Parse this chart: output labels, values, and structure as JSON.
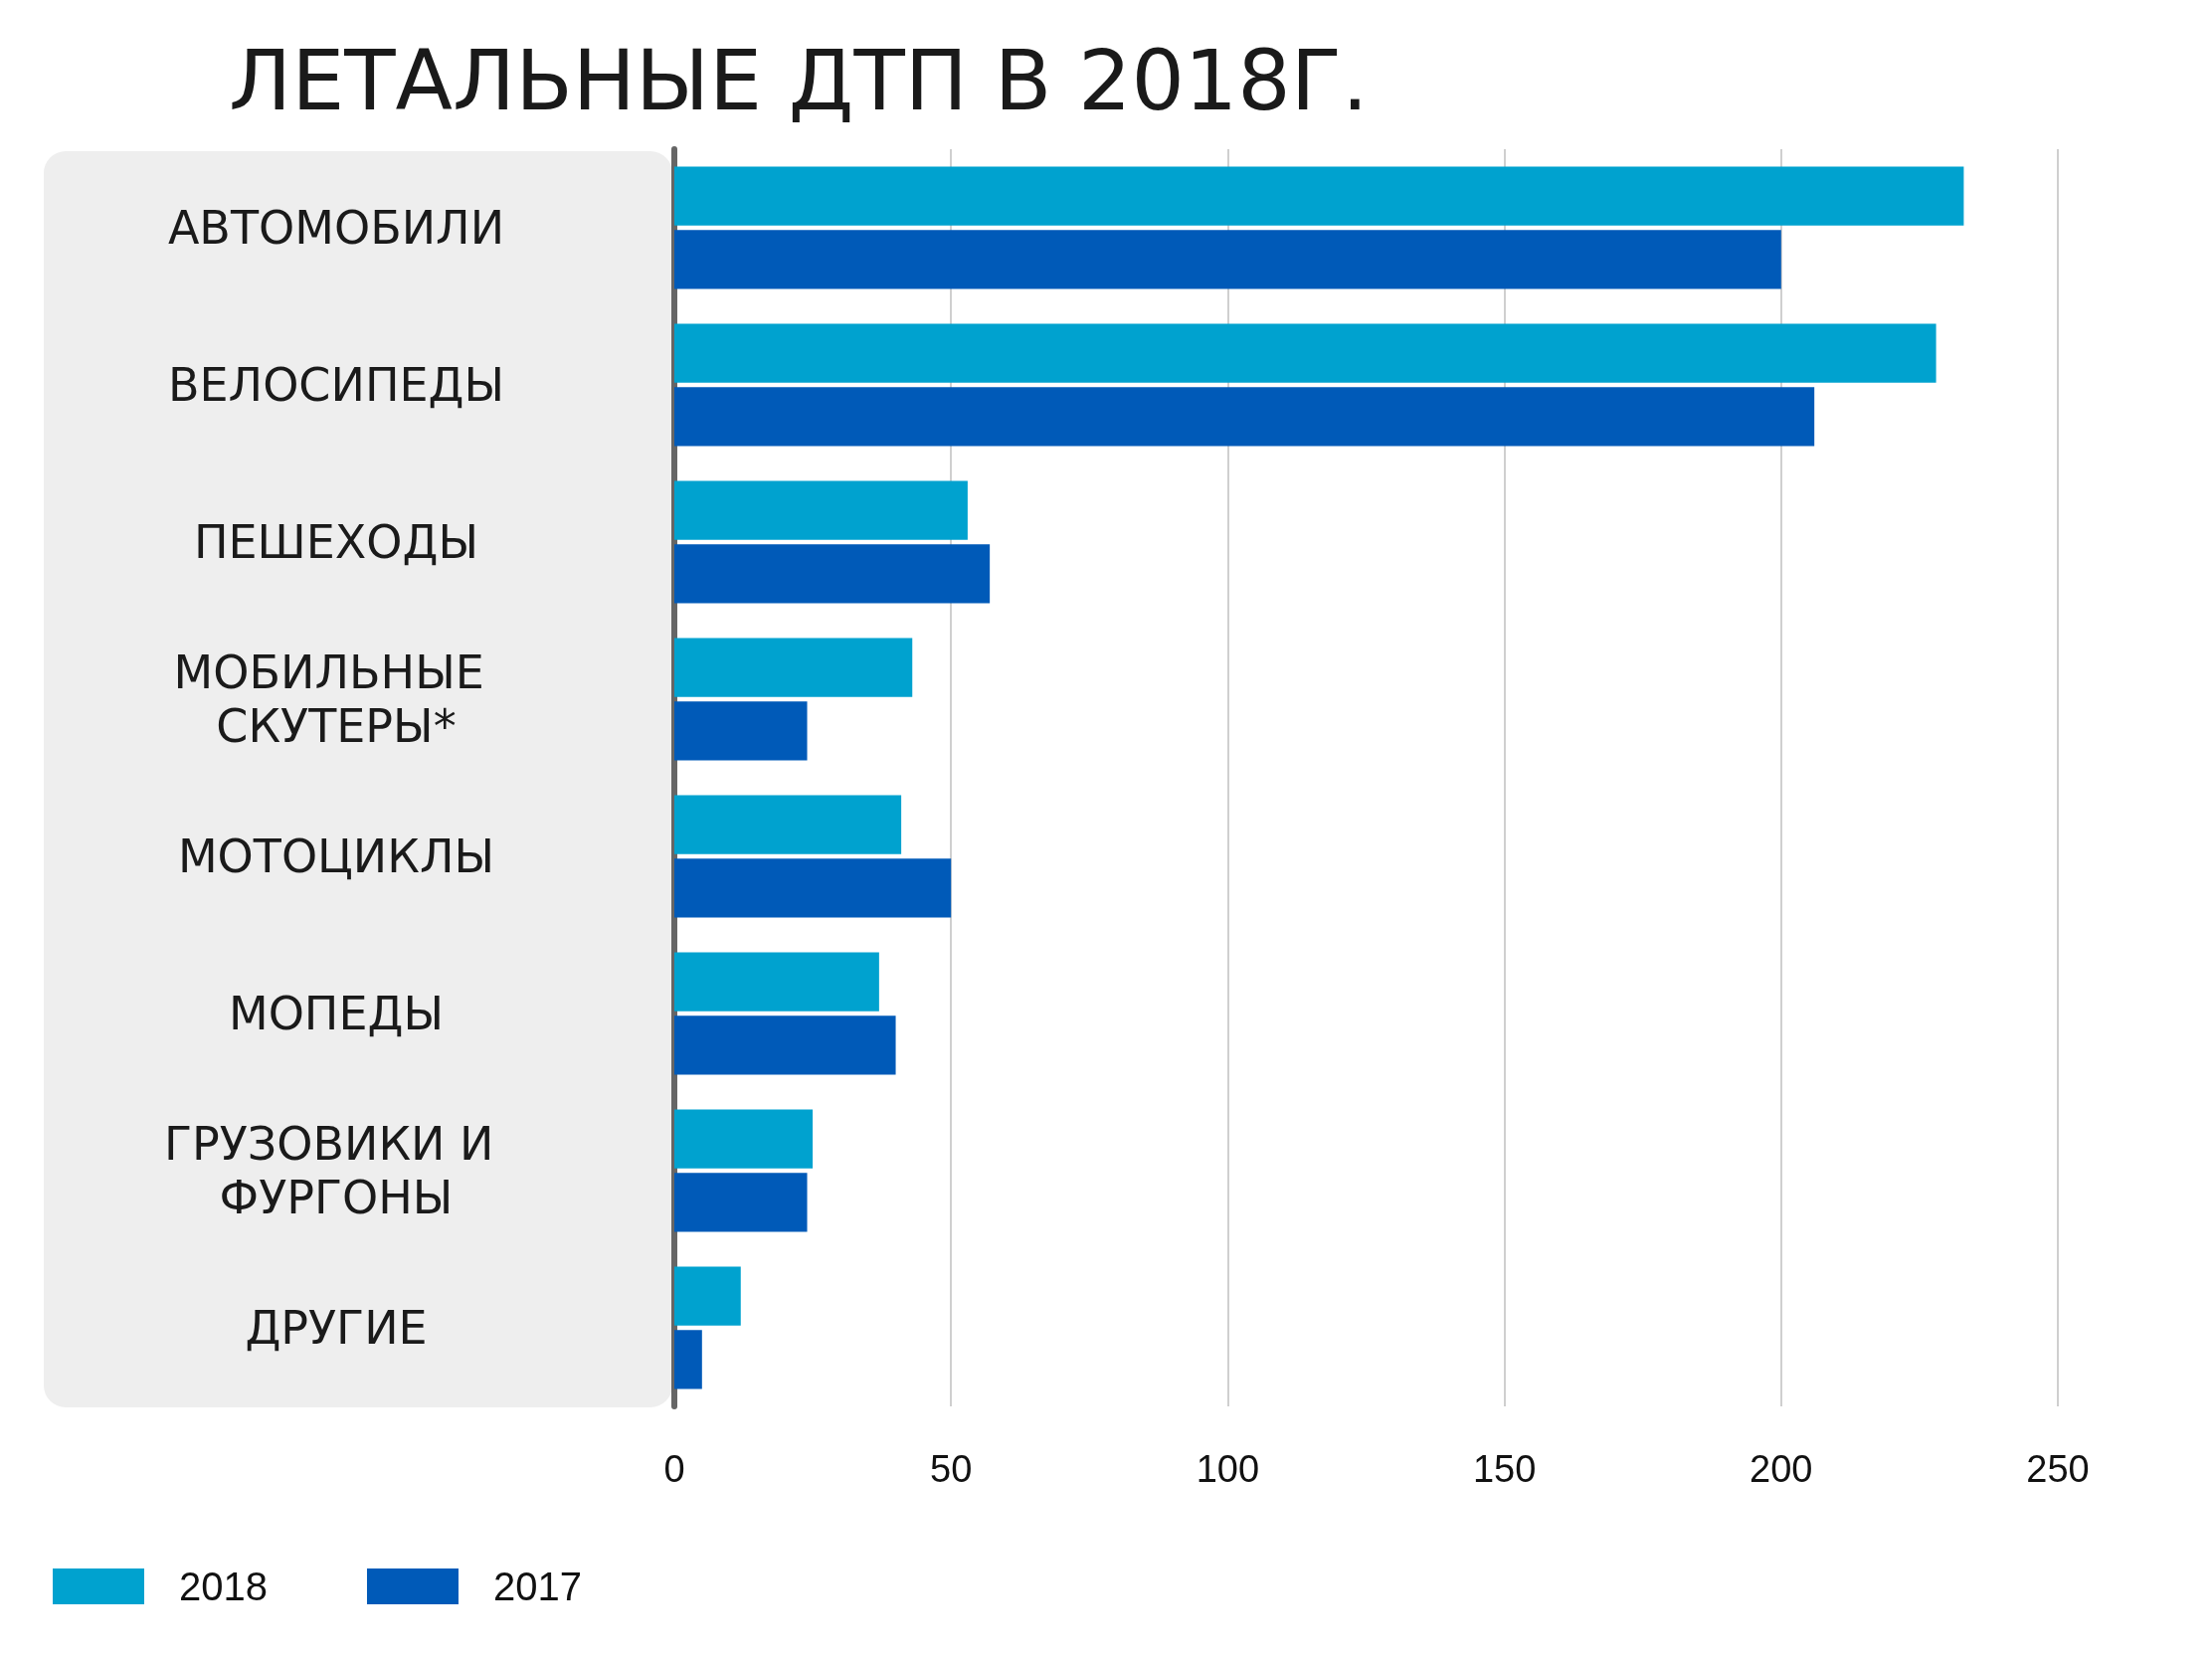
{
  "chart_data": {
    "type": "bar",
    "orientation": "horizontal",
    "title": "ЛЕТАЛЬНЫЕ ДТП В 2018Г.",
    "categories": [
      "АВТОМОБИЛИ",
      "ВЕЛОСИПЕДЫ",
      "ПЕШЕХОДЫ",
      "МОБИЛЬНЫЕ СКУТЕРЫ*",
      "МОТОЦИКЛЫ",
      "МОПЕДЫ",
      "ГРУЗОВИКИ И ФУРГОНЫ",
      "ДРУГИЕ"
    ],
    "series": [
      {
        "name": "2018",
        "color": "#00a2cf",
        "values": [
          233,
          228,
          53,
          43,
          41,
          37,
          25,
          12
        ]
      },
      {
        "name": "2017",
        "color": "#005ab8",
        "values": [
          200,
          206,
          57,
          24,
          50,
          40,
          24,
          5
        ]
      }
    ],
    "xlim": [
      0,
      250
    ],
    "xticks": [
      0,
      50,
      100,
      150,
      200,
      250
    ],
    "grid": "x",
    "legend": "bottom left"
  }
}
